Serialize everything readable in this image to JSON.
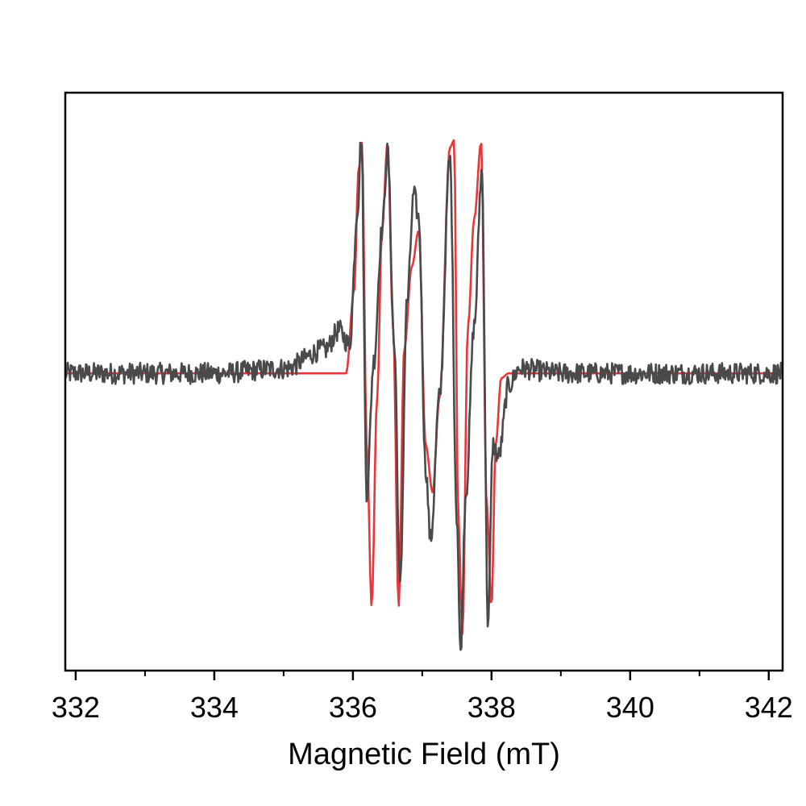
{
  "chart_data": {
    "type": "line",
    "title": "",
    "xlabel": "Magnetic Field (mT)",
    "ylabel": "",
    "xlim": [
      331.85,
      342.2
    ],
    "ylim": [
      -1.25,
      1.18
    ],
    "x_ticks": [
      332,
      334,
      336,
      338,
      340,
      342
    ],
    "x_tick_labels": [
      "332",
      "334",
      "336",
      "338",
      "340",
      "342"
    ],
    "x_minor_ticks": [
      333,
      335,
      337,
      339,
      341
    ],
    "y_ticks_shown": false,
    "grid": false,
    "legend": "none",
    "series": [
      {
        "color": "#4a4a4a",
        "role": "experimental",
        "x": [
          331.85,
          333.0,
          334.0,
          335.0,
          335.6,
          335.8,
          335.95,
          336.07,
          336.12,
          336.2,
          336.3,
          336.42,
          336.5,
          336.6,
          336.68,
          336.78,
          336.88,
          336.95,
          337.05,
          337.12,
          337.25,
          337.4,
          337.5,
          337.55,
          337.63,
          337.75,
          337.86,
          337.95,
          338.02,
          338.1,
          338.25,
          338.4,
          339.0,
          340.0,
          341.0,
          342.2
        ],
        "y": [
          0.0,
          0.0,
          0.0,
          0.02,
          0.1,
          0.18,
          0.12,
          0.7,
          1.0,
          -0.5,
          0.05,
          0.6,
          0.93,
          0.1,
          -0.9,
          0.3,
          0.75,
          0.65,
          -0.4,
          -0.7,
          -0.1,
          0.9,
          -0.6,
          -1.17,
          -0.5,
          0.2,
          0.85,
          -1.05,
          -0.3,
          -0.35,
          -0.05,
          0.02,
          0.0,
          0.0,
          0.0,
          0.0
        ],
        "noise_amplitude": 0.045
      },
      {
        "color": "#e8363a",
        "role": "simulation",
        "x": [
          331.85,
          335.9,
          336.02,
          336.08,
          336.13,
          336.2,
          336.27,
          336.35,
          336.42,
          336.5,
          336.58,
          336.66,
          336.74,
          336.85,
          336.95,
          337.05,
          337.15,
          337.25,
          337.4,
          337.46,
          337.52,
          337.58,
          337.66,
          337.75,
          337.85,
          337.93,
          338.0,
          338.06,
          338.14,
          338.25,
          342.2
        ],
        "y": [
          0.0,
          0.0,
          0.35,
          0.85,
          0.97,
          -0.3,
          -0.98,
          -0.1,
          0.6,
          0.97,
          0.2,
          -0.98,
          0.1,
          0.45,
          0.6,
          -0.3,
          -0.5,
          -0.1,
          0.95,
          0.98,
          -0.6,
          -1.1,
          0.2,
          0.65,
          0.97,
          -0.55,
          -0.98,
          -0.3,
          -0.02,
          0.0,
          0.0
        ]
      }
    ]
  }
}
